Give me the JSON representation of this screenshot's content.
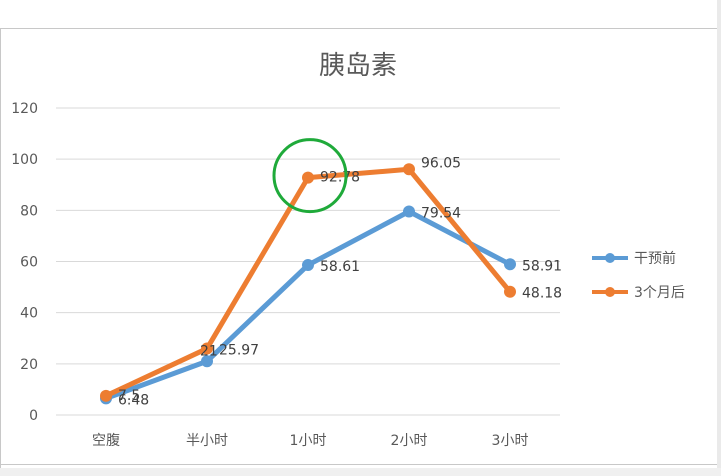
{
  "chart_data": {
    "type": "line",
    "title": "胰岛素",
    "categories": [
      "空腹",
      "半小时",
      "1小时",
      "2小时",
      "3小时"
    ],
    "y_ticks": [
      "0",
      "20",
      "40",
      "60",
      "80",
      "100",
      "120"
    ],
    "ylim": [
      0,
      120
    ],
    "grid": true,
    "legend_position": "right",
    "series": [
      {
        "name": "干预前",
        "color": "#5b9bd5",
        "values": [
          6.48,
          21,
          58.61,
          79.54,
          58.91
        ],
        "labels": [
          "6.48",
          "21",
          "58.61",
          "79.54",
          "58.91"
        ]
      },
      {
        "name": "3个月后",
        "color": "#ed7d31",
        "values": [
          7.5,
          25.97,
          92.78,
          96.05,
          48.18
        ],
        "labels": [
          "7.5",
          "25.97",
          "92.78",
          "96.05",
          "48.18"
        ]
      }
    ],
    "annotation": {
      "shape": "circle",
      "color": "#1faa3a",
      "category": "1小时",
      "value": 92.78
    }
  }
}
